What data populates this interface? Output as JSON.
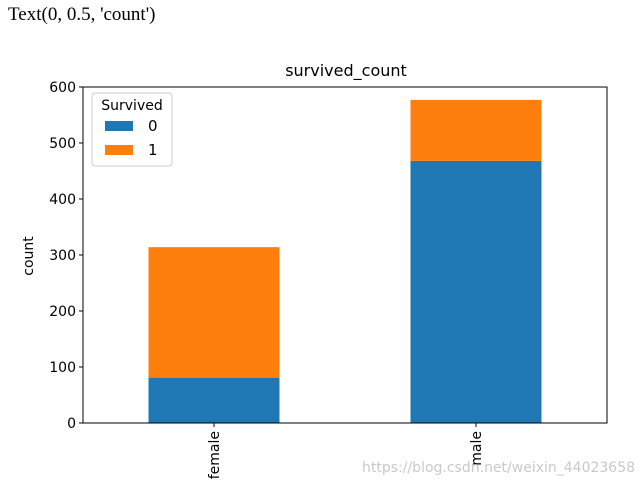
{
  "output_text": "Text(0, 0.5, 'count')",
  "watermark": "https://blog.csdn.net/weixin_44023658",
  "colors": {
    "series0": "#1f77b4",
    "series1": "#ff7f0e"
  },
  "chart_data": {
    "type": "bar",
    "stacked": true,
    "title": "survived_count",
    "xlabel": "",
    "ylabel": "count",
    "categories": [
      "female",
      "male"
    ],
    "series": [
      {
        "name": "0",
        "values": [
          81,
          468
        ]
      },
      {
        "name": "1",
        "values": [
          233,
          109
        ]
      }
    ],
    "ylim": [
      0,
      600
    ],
    "yticks": [
      0,
      100,
      200,
      300,
      400,
      500,
      600
    ],
    "legend": {
      "title": "Survived",
      "placement": "top-left"
    },
    "grid": false
  }
}
